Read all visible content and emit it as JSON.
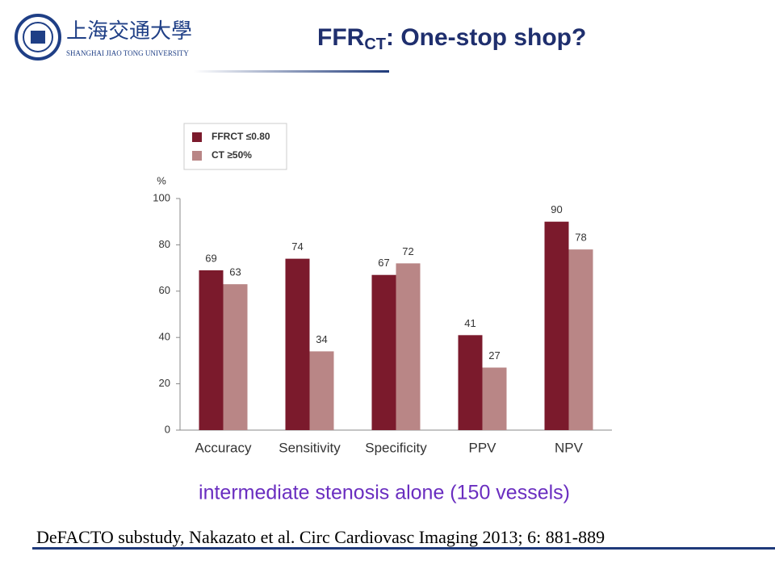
{
  "header": {
    "logo_cn": "上海交通大學",
    "logo_en": "SHANGHAI JIAO TONG UNIVERSITY",
    "title": {
      "text": "FFR",
      "subscript": "CT",
      "rest": ": One-stop shop?"
    }
  },
  "chart_data": {
    "type": "bar",
    "y_label": "%",
    "categories": [
      "Accuracy",
      "Sensitivity",
      "Specificity",
      "PPV",
      "NPV"
    ],
    "series": [
      {
        "name": "FFRCT ≤0.80",
        "color": "#7b1a2c",
        "values": [
          69,
          74,
          67,
          41,
          90
        ]
      },
      {
        "name": "CT ≥50%",
        "color": "#b98686",
        "values": [
          63,
          34,
          72,
          27,
          78
        ]
      }
    ],
    "ylim": [
      0,
      100
    ],
    "yticks": [
      0,
      20,
      40,
      60,
      80,
      100
    ],
    "grid": false,
    "legend": "top-left"
  },
  "caption": "intermediate stenosis alone (150 vessels)",
  "citation": "DeFACTO substudy,  Nakazato et al. Circ Cardiovasc Imaging 2013; 6: 881-889"
}
